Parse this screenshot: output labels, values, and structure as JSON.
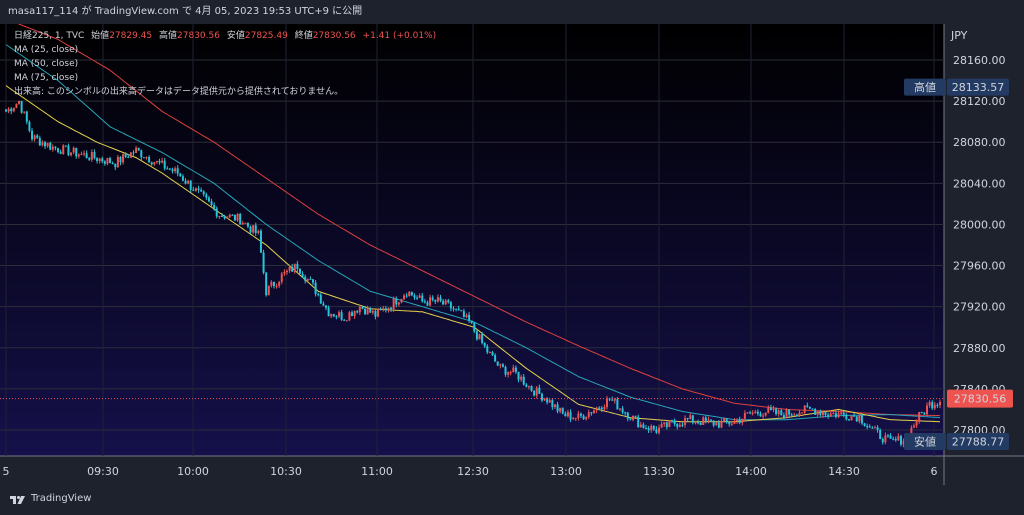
{
  "header": {
    "attribution": "masa117_114 が TradingView.com で 4月 05, 2023 19:53 UTC+9 に公開"
  },
  "legend": {
    "symbol": "日経225, 1, TVC",
    "open_label": "始値",
    "open_value": "27829.45",
    "high_label": "高値",
    "high_value": "27830.56",
    "low_label": "安値",
    "low_value": "27825.49",
    "close_label": "終値",
    "close_value": "27830.56",
    "change": "+1.41 (+0.01%)",
    "ma_lines": [
      "MA (25, close)",
      "MA (50, close)",
      "MA (75, close)"
    ],
    "volume_note": "出来高: このシンボルの出来高データはデータ提供元から提供されておりません。"
  },
  "price_axis": {
    "currency": "JPY",
    "ticks": [
      "28160.00",
      "28120.00",
      "28080.00",
      "28040.00",
      "28000.00",
      "27960.00",
      "27920.00",
      "27880.00",
      "27840.00",
      "27800.00"
    ],
    "high_marker_label": "高値",
    "high_marker_value": "28133.57",
    "low_marker_label": "安値",
    "low_marker_value": "27788.77",
    "last_price": "27830.56"
  },
  "time_axis": {
    "ticks": [
      "5",
      "09:30",
      "10:00",
      "10:30",
      "11:00",
      "12:30",
      "13:00",
      "13:30",
      "14:00",
      "14:30",
      "6"
    ]
  },
  "footer": {
    "brand": "TradingView"
  },
  "colors": {
    "up": "#ef5350",
    "down": "#26c6da",
    "ma25": "#e5d24c",
    "ma50": "#26a6b8",
    "ma75": "#e0403e",
    "last_price_bg": "#ef5350",
    "marker_bg": "#233a63"
  },
  "chart_data": {
    "type": "candlestick",
    "title": "日経225, 1, TVC",
    "ylabel": "JPY",
    "ylim": [
      27780,
      28180
    ],
    "x_ticks": [
      "5",
      "09:30",
      "10:00",
      "10:30",
      "11:00",
      "12:30",
      "13:00",
      "13:30",
      "14:00",
      "14:30",
      "6"
    ],
    "keypoints": [
      [
        0,
        28110
      ],
      [
        5,
        28120
      ],
      [
        10,
        28085
      ],
      [
        18,
        28075
      ],
      [
        26,
        28070
      ],
      [
        34,
        28065
      ],
      [
        42,
        28060
      ],
      [
        50,
        28072
      ],
      [
        58,
        28060
      ],
      [
        66,
        28050
      ],
      [
        74,
        28030
      ],
      [
        82,
        28010
      ],
      [
        90,
        28005
      ],
      [
        97,
        27990
      ],
      [
        100,
        27935
      ],
      [
        106,
        27950
      ],
      [
        112,
        27960
      ],
      [
        118,
        27940
      ],
      [
        124,
        27915
      ],
      [
        130,
        27910
      ],
      [
        136,
        27920
      ],
      [
        142,
        27912
      ],
      [
        148,
        27922
      ],
      [
        154,
        27935
      ],
      [
        160,
        27925
      ],
      [
        166,
        27925
      ],
      [
        172,
        27918
      ],
      [
        178,
        27905
      ],
      [
        184,
        27880
      ],
      [
        190,
        27860
      ],
      [
        196,
        27855
      ],
      [
        202,
        27840
      ],
      [
        208,
        27830
      ],
      [
        214,
        27815
      ],
      [
        220,
        27812
      ],
      [
        226,
        27820
      ],
      [
        232,
        27830
      ],
      [
        238,
        27818
      ],
      [
        244,
        27805
      ],
      [
        250,
        27800
      ],
      [
        256,
        27806
      ],
      [
        262,
        27810
      ],
      [
        268,
        27808
      ],
      [
        274,
        27806
      ],
      [
        280,
        27808
      ],
      [
        286,
        27816
      ],
      [
        292,
        27818
      ],
      [
        298,
        27815
      ],
      [
        304,
        27818
      ],
      [
        310,
        27820
      ],
      [
        316,
        27816
      ],
      [
        322,
        27815
      ],
      [
        328,
        27813
      ],
      [
        334,
        27798
      ],
      [
        340,
        27788
      ],
      [
        346,
        27792
      ],
      [
        350,
        27810
      ],
      [
        355,
        27825
      ],
      [
        360,
        27830
      ]
    ],
    "ma25_keys": [
      [
        0,
        28135
      ],
      [
        20,
        28100
      ],
      [
        35,
        28080
      ],
      [
        50,
        28065
      ],
      [
        60,
        28050
      ],
      [
        80,
        28015
      ],
      [
        100,
        27980
      ],
      [
        120,
        27935
      ],
      [
        140,
        27918
      ],
      [
        160,
        27915
      ],
      [
        180,
        27900
      ],
      [
        200,
        27860
      ],
      [
        220,
        27825
      ],
      [
        240,
        27812
      ],
      [
        260,
        27808
      ],
      [
        280,
        27808
      ],
      [
        300,
        27812
      ],
      [
        320,
        27820
      ],
      [
        340,
        27810
      ],
      [
        360,
        27808
      ]
    ],
    "ma50_keys": [
      [
        0,
        28175
      ],
      [
        20,
        28140
      ],
      [
        40,
        28095
      ],
      [
        60,
        28070
      ],
      [
        80,
        28040
      ],
      [
        100,
        28000
      ],
      [
        120,
        27965
      ],
      [
        140,
        27935
      ],
      [
        160,
        27920
      ],
      [
        180,
        27905
      ],
      [
        200,
        27880
      ],
      [
        220,
        27852
      ],
      [
        240,
        27832
      ],
      [
        260,
        27818
      ],
      [
        280,
        27810
      ],
      [
        300,
        27810
      ],
      [
        320,
        27814
      ],
      [
        340,
        27815
      ],
      [
        360,
        27812
      ]
    ],
    "ma75_keys": [
      [
        0,
        28200
      ],
      [
        20,
        28180
      ],
      [
        40,
        28150
      ],
      [
        60,
        28110
      ],
      [
        80,
        28080
      ],
      [
        100,
        28045
      ],
      [
        120,
        28010
      ],
      [
        140,
        27980
      ],
      [
        160,
        27955
      ],
      [
        180,
        27930
      ],
      [
        200,
        27905
      ],
      [
        220,
        27882
      ],
      [
        240,
        27860
      ],
      [
        260,
        27840
      ],
      [
        280,
        27826
      ],
      [
        300,
        27820
      ],
      [
        320,
        27818
      ],
      [
        340,
        27815
      ],
      [
        360,
        27814
      ]
    ],
    "ma25": [],
    "ma50": [],
    "ma75": [],
    "high": 28133.57,
    "low": 27788.77,
    "last": 27830.56
  }
}
